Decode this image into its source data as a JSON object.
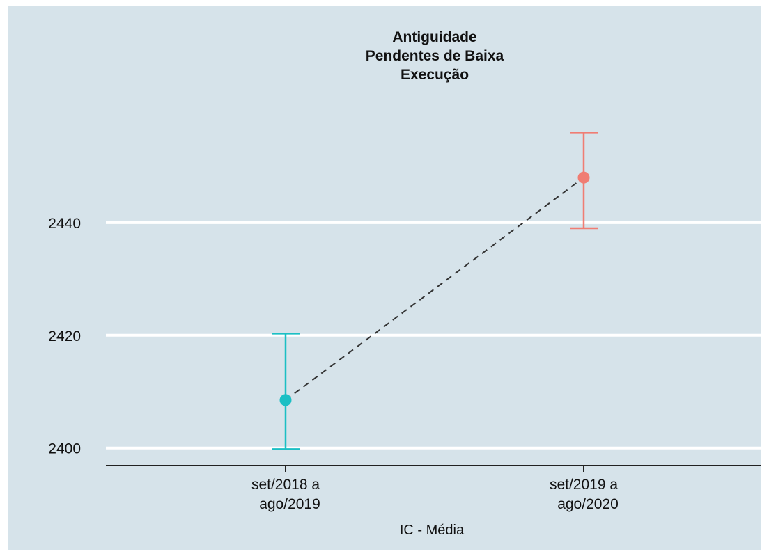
{
  "chart_data": {
    "type": "errorbar",
    "title_lines": [
      "Antiguidade",
      "Pendentes de Baixa",
      "Execução"
    ],
    "xlabel": "IC - Média",
    "ylabel": "",
    "categories": [
      [
        "set/2018 a",
        "ago/2019"
      ],
      [
        "set/2019 a",
        "ago/2020"
      ]
    ],
    "points": [
      {
        "mean": 2408.5,
        "lower": 2399.8,
        "upper": 2420.3,
        "color": "#1bbfc4"
      },
      {
        "mean": 2448,
        "lower": 2439,
        "upper": 2456,
        "color": "#f07d73"
      }
    ],
    "connector": {
      "style": "dashed",
      "color": "#333333"
    },
    "yticks": [
      2400,
      2420,
      2440
    ],
    "ylim": [
      2397,
      2460
    ],
    "grid": true,
    "legend": "none",
    "colors": {
      "panel_background": "#d6e3ea",
      "gridline": "#ffffff",
      "axis_line": "#222222"
    }
  }
}
